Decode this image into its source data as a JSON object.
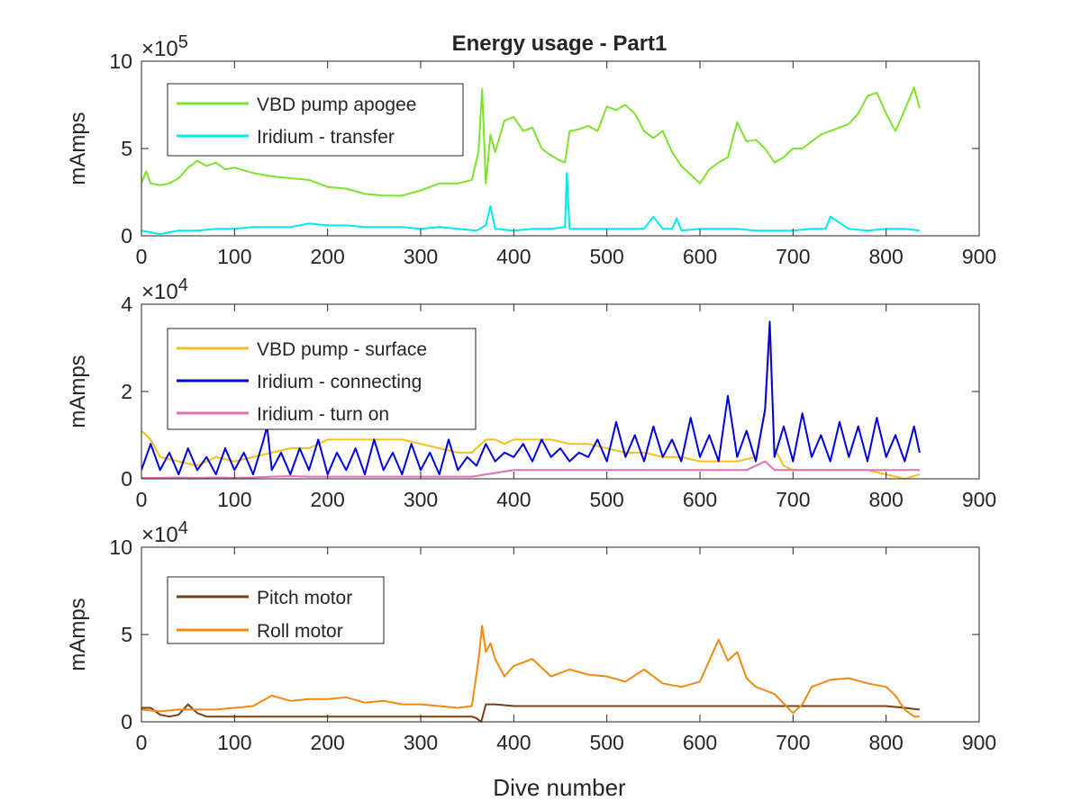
{
  "figure": {
    "title": "Energy usage - Part1",
    "xlabel": "Dive number"
  },
  "chart_data": [
    {
      "type": "line",
      "title": "Energy usage - Part1",
      "xlabel": "",
      "ylabel": "mAmps",
      "xlim": [
        0,
        900
      ],
      "ylim": [
        0,
        10
      ],
      "exponent_base": "×10",
      "exponent_power": "5",
      "x_ticks": [
        0,
        100,
        200,
        300,
        400,
        500,
        600,
        700,
        800,
        900
      ],
      "y_ticks": [
        0,
        5,
        10
      ],
      "grid": false,
      "legend": "top-left",
      "series": [
        {
          "name": "VBD pump apogee",
          "color": "#7ee12b",
          "x": [
            0,
            5,
            10,
            20,
            30,
            40,
            50,
            60,
            70,
            80,
            90,
            100,
            120,
            140,
            160,
            180,
            200,
            220,
            240,
            260,
            280,
            300,
            320,
            340,
            355,
            362,
            366,
            370,
            375,
            380,
            390,
            400,
            410,
            420,
            430,
            440,
            450,
            455,
            460,
            470,
            480,
            490,
            500,
            510,
            520,
            530,
            540,
            550,
            560,
            570,
            580,
            590,
            600,
            610,
            620,
            630,
            640,
            650,
            660,
            670,
            680,
            690,
            700,
            710,
            720,
            730,
            740,
            750,
            760,
            770,
            780,
            790,
            800,
            810,
            820,
            830,
            836
          ],
          "y": [
            3.0,
            3.7,
            3.0,
            2.9,
            3.0,
            3.3,
            3.9,
            4.3,
            4.0,
            4.2,
            3.8,
            3.9,
            3.6,
            3.4,
            3.3,
            3.2,
            2.8,
            2.7,
            2.4,
            2.3,
            2.3,
            2.6,
            3.0,
            3.0,
            3.2,
            4.8,
            8.4,
            3.0,
            5.8,
            4.8,
            6.6,
            6.8,
            6.0,
            6.2,
            5.0,
            4.6,
            4.3,
            4.2,
            6.0,
            6.1,
            6.3,
            6.0,
            7.4,
            7.2,
            7.5,
            7.0,
            6.0,
            5.6,
            6.0,
            4.8,
            4.0,
            3.5,
            3.0,
            3.8,
            4.2,
            4.5,
            6.5,
            5.4,
            5.5,
            5.0,
            4.2,
            4.5,
            5.0,
            5.0,
            5.4,
            5.8,
            6.0,
            6.2,
            6.4,
            7.0,
            8.0,
            8.2,
            7.0,
            6.0,
            7.2,
            8.5,
            7.3
          ]
        },
        {
          "name": "Iridium - transfer",
          "color": "#00e9f3",
          "x": [
            0,
            20,
            40,
            60,
            80,
            100,
            120,
            140,
            160,
            180,
            200,
            220,
            240,
            260,
            280,
            300,
            320,
            340,
            360,
            370,
            375,
            380,
            400,
            420,
            440,
            455,
            457,
            460,
            480,
            500,
            520,
            540,
            550,
            560,
            570,
            575,
            580,
            600,
            620,
            640,
            660,
            680,
            700,
            720,
            735,
            740,
            760,
            780,
            800,
            820,
            836
          ],
          "y": [
            0.3,
            0.1,
            0.3,
            0.3,
            0.4,
            0.4,
            0.5,
            0.5,
            0.5,
            0.7,
            0.6,
            0.6,
            0.5,
            0.5,
            0.5,
            0.4,
            0.5,
            0.4,
            0.3,
            0.6,
            1.7,
            0.4,
            0.3,
            0.4,
            0.4,
            0.5,
            3.6,
            0.4,
            0.4,
            0.4,
            0.4,
            0.4,
            1.1,
            0.4,
            0.4,
            1.0,
            0.3,
            0.4,
            0.4,
            0.4,
            0.3,
            0.3,
            0.3,
            0.4,
            0.4,
            1.1,
            0.4,
            0.3,
            0.4,
            0.4,
            0.3
          ]
        }
      ]
    },
    {
      "type": "line",
      "title": "",
      "xlabel": "",
      "ylabel": "mAmps",
      "xlim": [
        0,
        900
      ],
      "ylim": [
        0,
        4
      ],
      "exponent_base": "×10",
      "exponent_power": "4",
      "x_ticks": [
        0,
        100,
        200,
        300,
        400,
        500,
        600,
        700,
        800,
        900
      ],
      "y_ticks": [
        0,
        2,
        4
      ],
      "grid": false,
      "legend": "top-left",
      "series": [
        {
          "name": "VBD pump - surface",
          "color": "#f1c21b",
          "x": [
            0,
            10,
            20,
            40,
            60,
            80,
            100,
            120,
            140,
            160,
            180,
            200,
            220,
            240,
            260,
            280,
            300,
            320,
            340,
            355,
            370,
            380,
            390,
            400,
            420,
            440,
            460,
            480,
            500,
            520,
            540,
            560,
            580,
            600,
            620,
            640,
            660,
            670,
            675,
            680,
            690,
            700,
            720,
            740,
            760,
            780,
            800,
            820,
            836
          ],
          "y": [
            1.1,
            0.9,
            0.5,
            0.4,
            0.3,
            0.5,
            0.4,
            0.5,
            0.6,
            0.7,
            0.7,
            0.9,
            0.9,
            0.9,
            0.9,
            0.9,
            0.8,
            0.7,
            0.6,
            0.6,
            0.9,
            0.9,
            0.8,
            0.9,
            0.9,
            0.9,
            0.8,
            0.8,
            0.7,
            0.6,
            0.6,
            0.5,
            0.5,
            0.4,
            0.4,
            0.4,
            0.5,
            1.5,
            3.3,
            0.7,
            0.3,
            0.2,
            0.2,
            0.2,
            0.2,
            0.2,
            0.1,
            0.0,
            0.1
          ]
        },
        {
          "name": "Iridium - connecting",
          "color": "#0000dd",
          "x": [
            0,
            10,
            20,
            30,
            40,
            50,
            60,
            70,
            80,
            90,
            100,
            110,
            120,
            130,
            135,
            140,
            150,
            160,
            170,
            180,
            190,
            200,
            210,
            220,
            230,
            240,
            250,
            260,
            270,
            280,
            290,
            300,
            310,
            320,
            330,
            340,
            350,
            360,
            370,
            380,
            390,
            400,
            410,
            420,
            430,
            440,
            450,
            460,
            470,
            480,
            490,
            500,
            510,
            520,
            530,
            540,
            550,
            560,
            570,
            580,
            590,
            600,
            610,
            620,
            630,
            640,
            650,
            660,
            670,
            675,
            680,
            690,
            700,
            710,
            720,
            730,
            740,
            750,
            760,
            770,
            780,
            790,
            800,
            810,
            820,
            830,
            836
          ],
          "y": [
            0.2,
            0.8,
            0.2,
            0.6,
            0.1,
            0.7,
            0.2,
            0.5,
            0.1,
            0.7,
            0.2,
            0.6,
            0.1,
            0.8,
            1.2,
            0.2,
            0.6,
            0.1,
            0.7,
            0.2,
            0.9,
            0.1,
            0.6,
            0.2,
            0.7,
            0.1,
            0.9,
            0.2,
            0.6,
            0.1,
            0.8,
            0.2,
            0.6,
            0.1,
            0.9,
            0.2,
            0.5,
            0.3,
            0.8,
            0.4,
            0.6,
            0.5,
            0.8,
            0.4,
            0.9,
            0.5,
            0.7,
            0.4,
            0.6,
            0.5,
            0.9,
            0.4,
            1.3,
            0.5,
            1.0,
            0.4,
            1.2,
            0.5,
            0.9,
            0.4,
            1.4,
            0.5,
            1.0,
            0.4,
            1.9,
            0.5,
            1.1,
            0.4,
            1.6,
            3.6,
            0.5,
            1.2,
            0.4,
            1.5,
            0.5,
            1.0,
            0.4,
            1.3,
            0.5,
            1.2,
            0.4,
            1.4,
            0.5,
            1.0,
            0.4,
            1.2,
            0.6
          ]
        },
        {
          "name": "Iridium - turn on",
          "color": "#e26fb1",
          "x": [
            0,
            20,
            40,
            60,
            80,
            100,
            120,
            140,
            160,
            180,
            200,
            220,
            240,
            260,
            280,
            300,
            320,
            340,
            355,
            370,
            400,
            450,
            500,
            550,
            600,
            650,
            670,
            680,
            700,
            750,
            800,
            836
          ],
          "y": [
            0.02,
            0.02,
            0.03,
            0.02,
            0.03,
            0.02,
            0.03,
            0.05,
            0.06,
            0.05,
            0.05,
            0.05,
            0.05,
            0.05,
            0.05,
            0.05,
            0.05,
            0.05,
            0.05,
            0.1,
            0.2,
            0.2,
            0.2,
            0.2,
            0.2,
            0.2,
            0.4,
            0.2,
            0.2,
            0.2,
            0.2,
            0.2
          ]
        }
      ]
    },
    {
      "type": "line",
      "title": "",
      "xlabel": "Dive number",
      "ylabel": "mAmps",
      "xlim": [
        0,
        900
      ],
      "ylim": [
        0,
        10
      ],
      "exponent_base": "×10",
      "exponent_power": "4",
      "x_ticks": [
        0,
        100,
        200,
        300,
        400,
        500,
        600,
        700,
        800,
        900
      ],
      "y_ticks": [
        0,
        5,
        10
      ],
      "grid": false,
      "legend": "top-left",
      "series": [
        {
          "name": "Pitch motor",
          "color": "#7a3e12",
          "x": [
            0,
            10,
            20,
            30,
            40,
            50,
            60,
            70,
            100,
            150,
            200,
            250,
            300,
            340,
            355,
            360,
            365,
            370,
            380,
            400,
            450,
            500,
            550,
            600,
            650,
            700,
            750,
            800,
            820,
            836
          ],
          "y": [
            0.8,
            0.8,
            0.4,
            0.3,
            0.4,
            1.0,
            0.5,
            0.3,
            0.3,
            0.3,
            0.3,
            0.3,
            0.3,
            0.3,
            0.3,
            0.2,
            0.0,
            1.0,
            1.0,
            0.9,
            0.9,
            0.9,
            0.9,
            0.9,
            0.9,
            0.9,
            0.9,
            0.9,
            0.8,
            0.7
          ]
        },
        {
          "name": "Roll motor",
          "color": "#f08a12",
          "x": [
            0,
            20,
            40,
            60,
            80,
            100,
            120,
            140,
            160,
            180,
            200,
            220,
            240,
            260,
            280,
            300,
            320,
            340,
            355,
            362,
            366,
            370,
            375,
            380,
            390,
            400,
            420,
            440,
            460,
            480,
            500,
            520,
            540,
            560,
            580,
            600,
            620,
            630,
            640,
            650,
            660,
            680,
            700,
            710,
            720,
            740,
            760,
            780,
            800,
            810,
            820,
            830,
            836
          ],
          "y": [
            0.7,
            0.6,
            0.7,
            0.7,
            0.7,
            0.8,
            0.9,
            1.5,
            1.2,
            1.3,
            1.3,
            1.4,
            1.1,
            1.2,
            1.0,
            1.0,
            0.9,
            0.8,
            0.9,
            3.5,
            5.5,
            4.0,
            4.5,
            3.6,
            2.6,
            3.2,
            3.6,
            2.6,
            3.0,
            2.7,
            2.6,
            2.3,
            3.0,
            2.2,
            2.0,
            2.3,
            4.7,
            3.5,
            4.0,
            2.5,
            2.0,
            1.6,
            0.5,
            1.0,
            2.0,
            2.4,
            2.5,
            2.2,
            2.0,
            1.5,
            0.7,
            0.3,
            0.3
          ]
        }
      ]
    }
  ]
}
